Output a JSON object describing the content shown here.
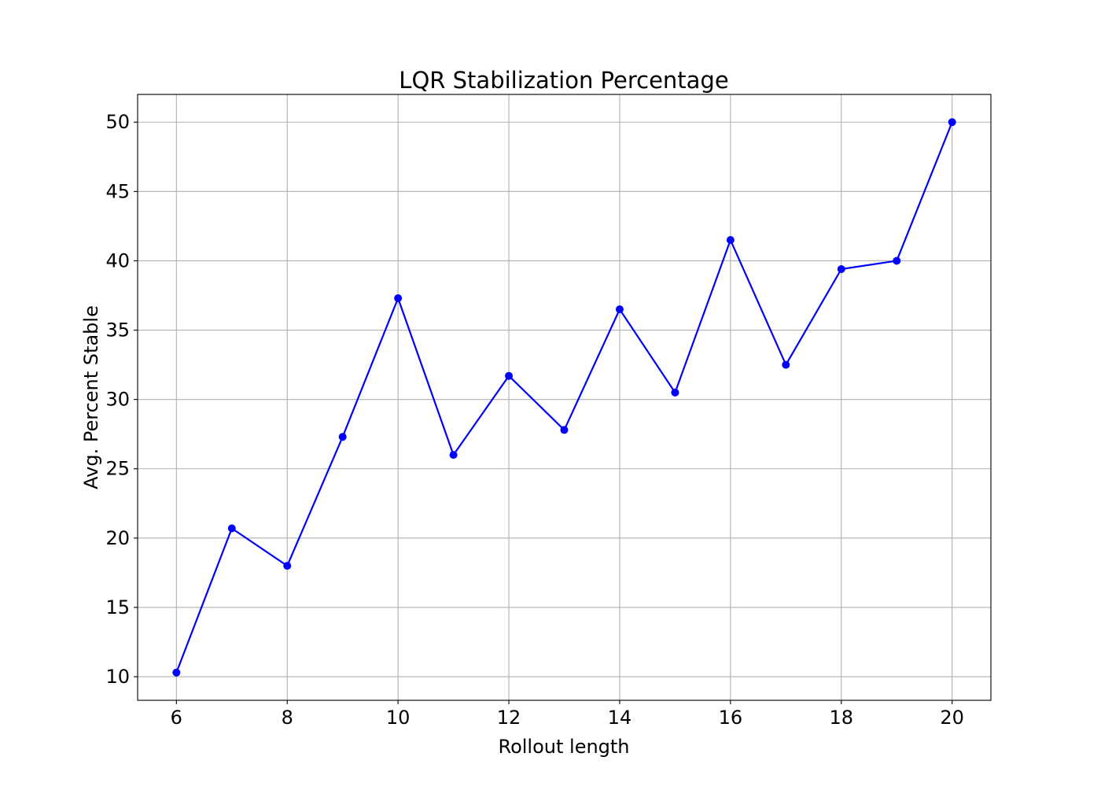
{
  "chart_data": {
    "type": "line",
    "title": "LQR Stabilization Percentage",
    "xlabel": "Rollout length",
    "ylabel": "Avg. Percent Stable",
    "x": [
      6,
      7,
      8,
      9,
      10,
      11,
      12,
      13,
      14,
      15,
      16,
      17,
      18,
      19,
      20
    ],
    "series": [
      {
        "values": [
          10.3,
          20.7,
          18.0,
          27.3,
          37.3,
          26.0,
          31.7,
          27.8,
          36.5,
          30.5,
          41.5,
          32.5,
          39.4,
          40.0,
          50.0
        ],
        "color": "#0000ff",
        "marker": "circle"
      }
    ],
    "xlim": [
      5.3,
      20.7
    ],
    "ylim": [
      8.3,
      52.0
    ],
    "xticks": [
      6,
      8,
      10,
      12,
      14,
      16,
      18,
      20
    ],
    "yticks": [
      10,
      15,
      20,
      25,
      30,
      35,
      40,
      45,
      50
    ],
    "grid": true,
    "legend": "none"
  }
}
